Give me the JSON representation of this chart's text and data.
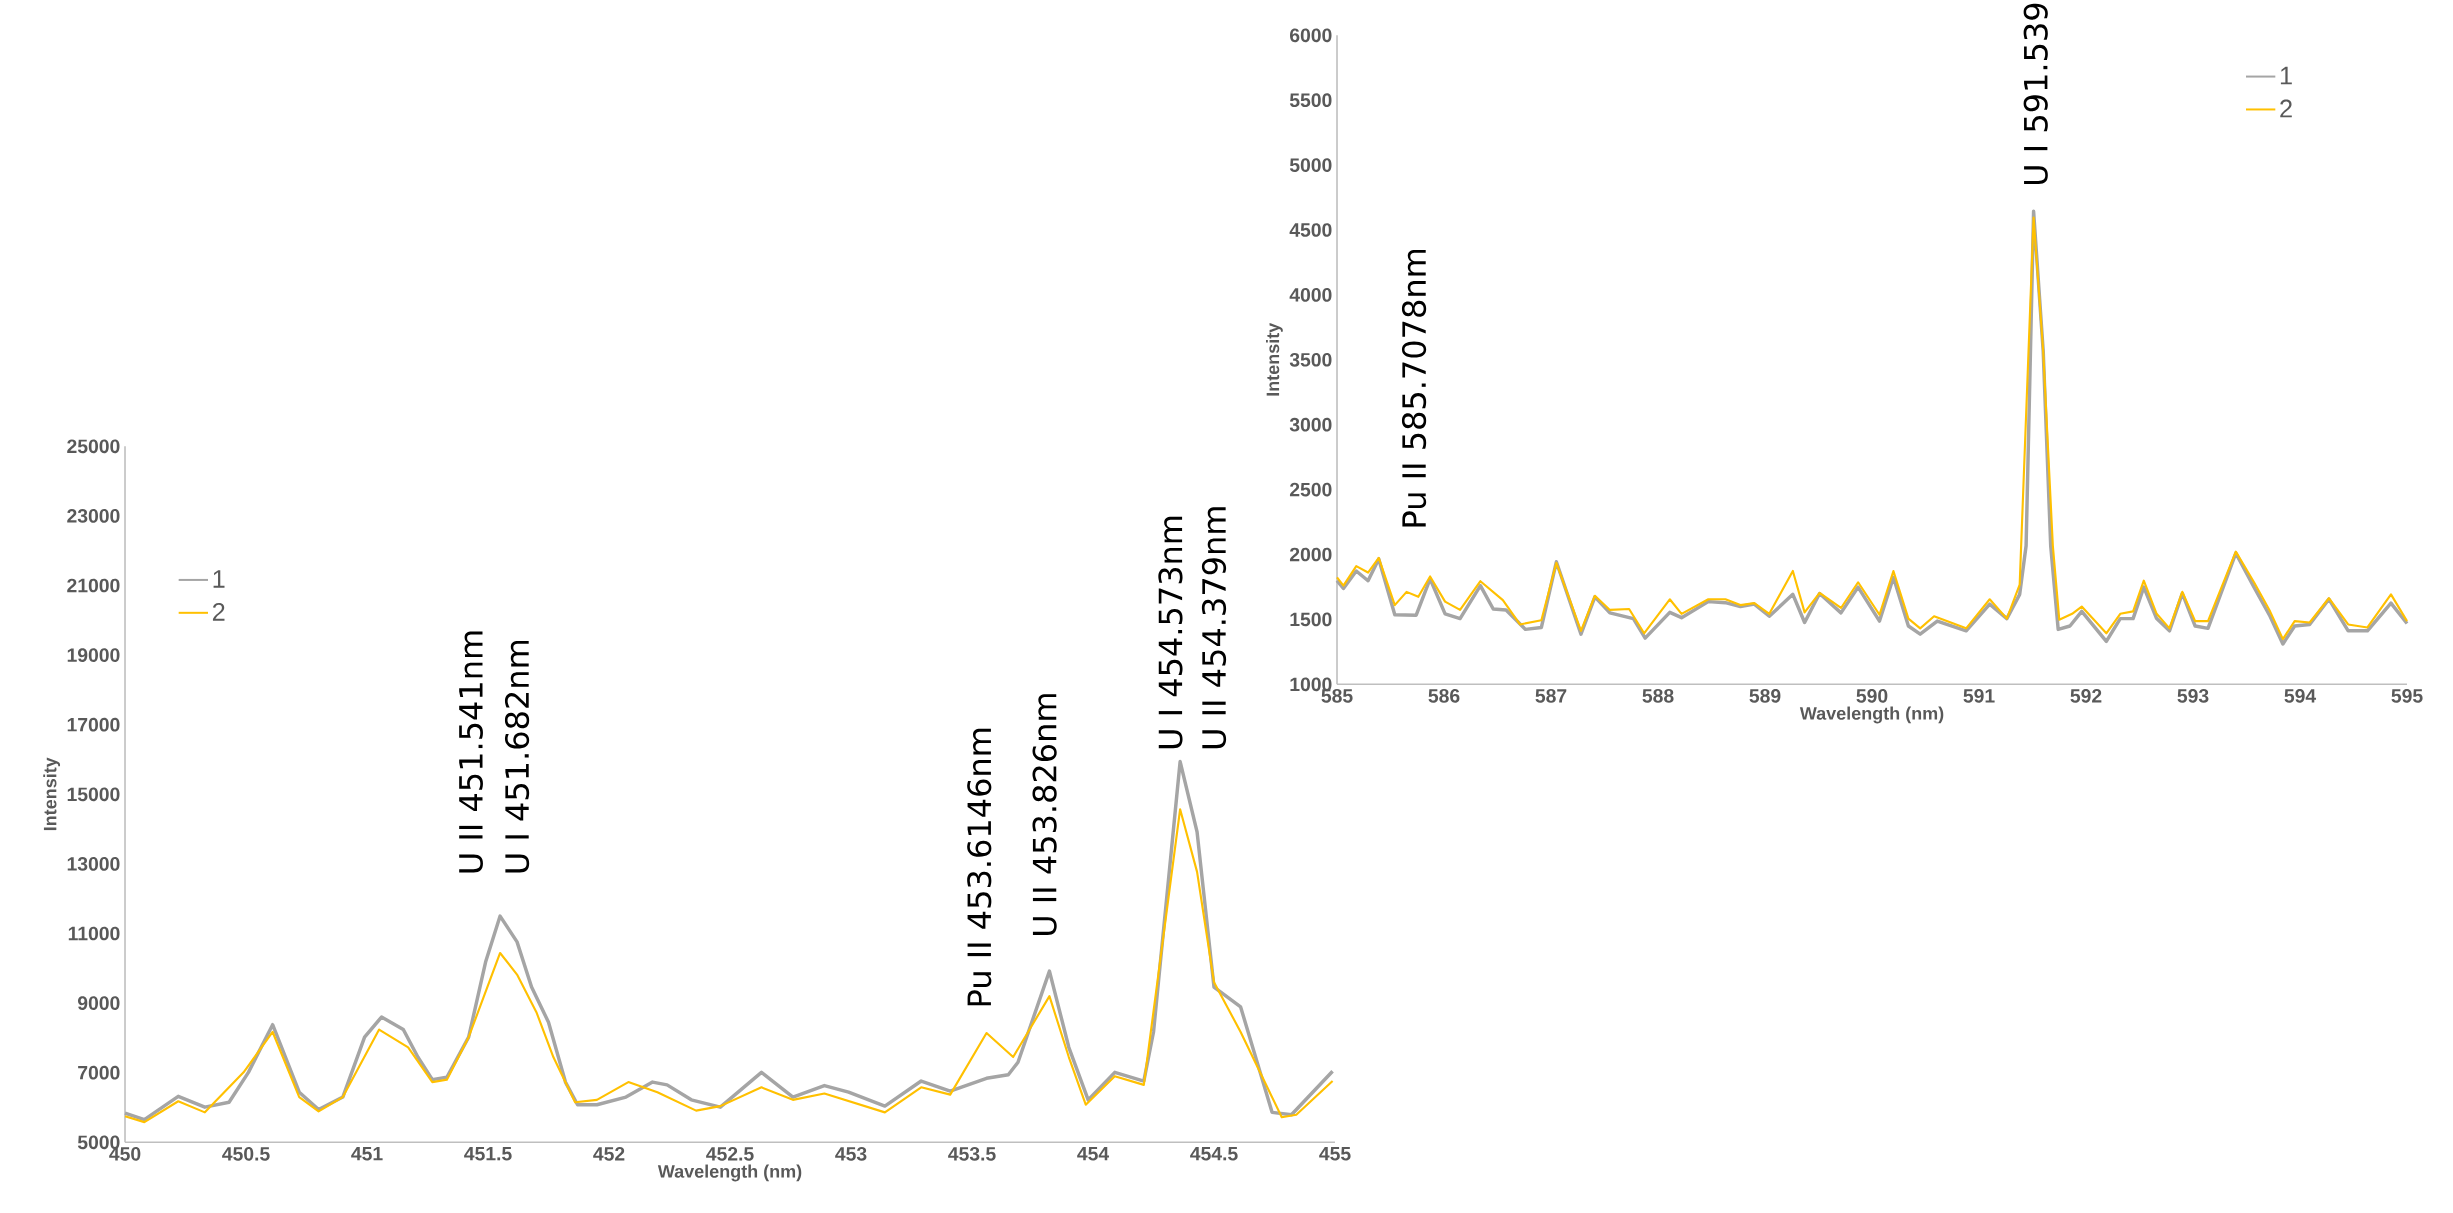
{
  "chart_data": [
    {
      "type": "line",
      "xlabel": "Wavelength (nm)",
      "ylabel": "Intensity",
      "xlim": [
        450,
        455
      ],
      "ylim": [
        5000,
        25000
      ],
      "xticks": [
        450,
        450.5,
        451,
        451.5,
        452,
        452.5,
        453,
        453.5,
        454,
        454.5,
        455
      ],
      "yticks": [
        5000,
        7000,
        9000,
        11000,
        13000,
        15000,
        17000,
        19000,
        21000,
        23000,
        25000
      ],
      "legend": "top left",
      "series": [
        {
          "name": "1",
          "color": "#a5a5a5",
          "x": [
            450.0,
            450.08,
            450.22,
            450.33,
            450.43,
            450.51,
            450.61,
            450.72,
            450.8,
            450.9,
            450.99,
            451.06,
            451.15,
            451.21,
            451.27,
            451.33,
            451.42,
            451.49,
            451.55,
            451.62,
            451.68,
            451.75,
            451.82,
            451.87,
            451.95,
            452.07,
            452.18,
            452.24,
            452.34,
            452.46,
            452.63,
            452.76,
            452.89,
            452.99,
            453.14,
            453.29,
            453.41,
            453.56,
            453.65,
            453.69,
            453.82,
            453.9,
            453.98,
            454.09,
            454.21,
            454.25,
            454.36,
            454.43,
            454.5,
            454.61,
            454.74,
            454.82,
            454.99
          ],
          "values": [
            5840,
            5650,
            6320,
            6010,
            6150,
            7010,
            8380,
            6440,
            5940,
            6300,
            8020,
            8600,
            8240,
            7450,
            6800,
            6870,
            8020,
            10180,
            11500,
            10760,
            9460,
            8450,
            6730,
            6080,
            6080,
            6300,
            6730,
            6650,
            6220,
            6010,
            7010,
            6300,
            6630,
            6440,
            6040,
            6760,
            6470,
            6840,
            6940,
            7300,
            9920,
            7730,
            6220,
            7010,
            6760,
            8170,
            15940,
            13920,
            9460,
            8890,
            5860,
            5790,
            7040
          ]
        },
        {
          "name": "2",
          "color": "#ffc000",
          "x": [
            450.0,
            450.08,
            450.22,
            450.33,
            450.49,
            450.61,
            450.72,
            450.8,
            450.9,
            451.05,
            451.17,
            451.27,
            451.33,
            451.42,
            451.55,
            451.62,
            451.7,
            451.77,
            451.86,
            451.95,
            452.08,
            452.2,
            452.36,
            452.46,
            452.63,
            452.76,
            452.89,
            453.14,
            453.29,
            453.41,
            453.56,
            453.67,
            453.82,
            453.9,
            453.97,
            454.09,
            454.21,
            454.36,
            454.43,
            454.5,
            454.61,
            454.78,
            454.84,
            454.99
          ],
          "values": [
            5750,
            5580,
            6180,
            5860,
            7010,
            8170,
            6300,
            5890,
            6300,
            8240,
            7730,
            6730,
            6800,
            8020,
            10440,
            9820,
            8740,
            7450,
            6150,
            6220,
            6730,
            6440,
            5910,
            6040,
            6580,
            6220,
            6400,
            5860,
            6580,
            6370,
            8140,
            7450,
            9200,
            7450,
            6080,
            6900,
            6650,
            14570,
            12770,
            9600,
            8170,
            5720,
            5790,
            6760
          ]
        }
      ],
      "annotations": [
        "U II 451.541nm",
        "U I 451.682nm",
        "Pu II 453.6146nm",
        "U II 453.826nm",
        "U I 454.573nm",
        "U II 454.379nm"
      ]
    },
    {
      "type": "line",
      "xlabel": "Wavelength (nm)",
      "ylabel": "Intensity",
      "xlim": [
        585,
        595
      ],
      "ylim": [
        1000,
        6000
      ],
      "xticks": [
        585,
        586,
        587,
        588,
        589,
        590,
        591,
        592,
        593,
        594,
        595
      ],
      "yticks": [
        1000,
        1500,
        2000,
        2500,
        3000,
        3500,
        4000,
        4500,
        5000,
        5500,
        6000
      ],
      "legend": "top right",
      "series": [
        {
          "name": "1",
          "color": "#a5a5a5",
          "x": [
            585.0,
            585.06,
            585.18,
            585.29,
            585.39,
            585.54,
            585.74,
            585.87,
            586.01,
            586.15,
            586.34,
            586.46,
            586.58,
            586.76,
            586.91,
            587.05,
            587.28,
            587.41,
            587.55,
            587.77,
            587.88,
            588.11,
            588.22,
            588.47,
            588.63,
            588.77,
            588.9,
            589.04,
            589.26,
            589.37,
            589.51,
            589.71,
            589.87,
            590.07,
            590.2,
            590.34,
            590.45,
            590.61,
            590.88,
            591.1,
            591.26,
            591.38,
            591.44,
            591.51,
            591.6,
            591.67,
            591.74,
            591.85,
            591.96,
            592.19,
            592.32,
            592.44,
            592.54,
            592.66,
            592.78,
            592.9,
            593.02,
            593.14,
            593.4,
            593.57,
            593.72,
            593.84,
            593.95,
            594.09,
            594.27,
            594.45,
            594.63,
            594.85,
            595.0
          ],
          "values": [
            1798,
            1738,
            1873,
            1798,
            1966,
            1536,
            1532,
            1813,
            1543,
            1506,
            1760,
            1580,
            1573,
            1423,
            1438,
            1944,
            1386,
            1674,
            1550,
            1506,
            1356,
            1554,
            1513,
            1637,
            1629,
            1599,
            1618,
            1524,
            1693,
            1476,
            1700,
            1550,
            1749,
            1487,
            1824,
            1449,
            1386,
            1487,
            1412,
            1618,
            1506,
            1693,
            2067,
            4644,
            3565,
            2067,
            1423,
            1449,
            1562,
            1330,
            1506,
            1506,
            1749,
            1506,
            1412,
            1700,
            1449,
            1431,
            2011,
            1749,
            1524,
            1311,
            1449,
            1461,
            1656,
            1412,
            1412,
            1625,
            1468
          ]
        },
        {
          "name": "2",
          "color": "#ffc000",
          "x": [
            585.0,
            585.06,
            585.18,
            585.29,
            585.39,
            585.54,
            585.65,
            585.76,
            585.87,
            586.01,
            586.15,
            586.34,
            586.55,
            586.71,
            586.91,
            587.05,
            587.28,
            587.41,
            587.55,
            587.73,
            587.87,
            588.11,
            588.22,
            588.47,
            588.63,
            588.77,
            588.9,
            589.04,
            589.26,
            589.37,
            589.51,
            589.71,
            589.87,
            590.07,
            590.2,
            590.34,
            590.45,
            590.58,
            590.88,
            591.1,
            591.26,
            591.38,
            591.51,
            591.6,
            591.69,
            591.75,
            591.87,
            591.96,
            592.19,
            592.32,
            592.44,
            592.54,
            592.66,
            592.78,
            592.9,
            593.02,
            593.14,
            593.4,
            593.57,
            593.72,
            593.84,
            593.95,
            594.09,
            594.27,
            594.45,
            594.63,
            594.85,
            595.0
          ],
          "values": [
            1824,
            1760,
            1910,
            1861,
            1974,
            1610,
            1712,
            1674,
            1831,
            1637,
            1573,
            1794,
            1648,
            1461,
            1494,
            1936,
            1412,
            1682,
            1573,
            1580,
            1393,
            1655,
            1543,
            1655,
            1655,
            1610,
            1625,
            1543,
            1873,
            1554,
            1704,
            1588,
            1786,
            1536,
            1873,
            1506,
            1431,
            1524,
            1431,
            1655,
            1506,
            1768,
            4595,
            3565,
            2067,
            1498,
            1543,
            1599,
            1393,
            1543,
            1562,
            1798,
            1543,
            1431,
            1712,
            1487,
            1487,
            2022,
            1786,
            1562,
            1348,
            1487,
            1476,
            1663,
            1461,
            1438,
            1693,
            1487
          ]
        }
      ],
      "annotations": [
        "Pu II 585.7078nm",
        "U I 591.539"
      ]
    }
  ]
}
